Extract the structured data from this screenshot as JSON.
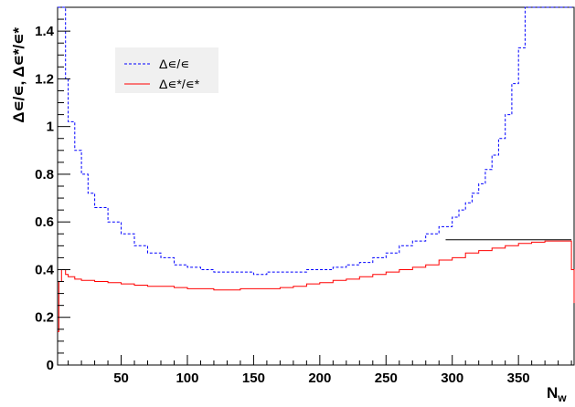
{
  "chart_data": {
    "type": "line",
    "title": "",
    "xlabel": "N",
    "xlabel_sub": "w",
    "ylabel": "Δ∊/∊, Δ∊*/∊*",
    "xlim": [
      2,
      392
    ],
    "ylim": [
      0,
      1.5
    ],
    "x_ticks": [
      50,
      100,
      150,
      200,
      250,
      300,
      350
    ],
    "y_ticks": [
      0,
      0.2,
      0.4,
      0.6,
      0.8,
      1,
      1.2,
      1.4
    ],
    "y_tick_labels": [
      "0",
      "0.2",
      "0.4",
      "0.6",
      "0.8",
      "1",
      "1.2",
      "1.4"
    ],
    "grid": false,
    "legend_position": "top-left",
    "series": [
      {
        "name": "Δ∊/∊",
        "color": "#0000ff",
        "style": "dashed",
        "x": [
          2,
          4,
          6,
          8,
          10,
          15,
          20,
          25,
          30,
          40,
          50,
          60,
          70,
          80,
          90,
          100,
          110,
          120,
          130,
          140,
          150,
          160,
          170,
          180,
          190,
          200,
          210,
          220,
          230,
          240,
          250,
          260,
          270,
          280,
          290,
          300,
          305,
          310,
          315,
          320,
          325,
          330,
          335,
          340,
          345,
          350,
          355,
          360,
          365,
          370,
          375,
          380,
          385,
          390,
          392
        ],
        "values": [
          1.5,
          1.5,
          1.5,
          1.2,
          1.02,
          0.9,
          0.8,
          0.72,
          0.66,
          0.6,
          0.55,
          0.5,
          0.47,
          0.45,
          0.42,
          0.41,
          0.4,
          0.39,
          0.39,
          0.39,
          0.38,
          0.39,
          0.39,
          0.39,
          0.4,
          0.4,
          0.41,
          0.42,
          0.43,
          0.45,
          0.47,
          0.5,
          0.52,
          0.55,
          0.58,
          0.62,
          0.65,
          0.68,
          0.72,
          0.76,
          0.82,
          0.88,
          0.95,
          1.05,
          1.18,
          1.33,
          1.5,
          1.5,
          1.5,
          1.5,
          1.5,
          1.5,
          1.5,
          1.5,
          1.5
        ]
      },
      {
        "name": "Δ∊*/∊*",
        "color": "#ff0000",
        "style": "solid",
        "x": [
          2,
          3,
          5,
          8,
          10,
          15,
          20,
          30,
          40,
          50,
          60,
          70,
          80,
          90,
          100,
          110,
          120,
          130,
          140,
          150,
          160,
          170,
          180,
          190,
          200,
          210,
          220,
          230,
          240,
          250,
          260,
          270,
          280,
          290,
          300,
          310,
          320,
          330,
          340,
          350,
          360,
          370,
          380,
          385,
          388,
          390,
          392
        ],
        "values": [
          0.14,
          0.35,
          0.4,
          0.38,
          0.37,
          0.36,
          0.355,
          0.35,
          0.345,
          0.34,
          0.335,
          0.33,
          0.33,
          0.325,
          0.32,
          0.32,
          0.315,
          0.315,
          0.32,
          0.32,
          0.32,
          0.325,
          0.33,
          0.34,
          0.345,
          0.355,
          0.36,
          0.37,
          0.38,
          0.39,
          0.4,
          0.41,
          0.42,
          0.44,
          0.45,
          0.47,
          0.48,
          0.49,
          0.5,
          0.51,
          0.515,
          0.52,
          0.52,
          0.52,
          0.52,
          0.4,
          0.26
        ]
      }
    ],
    "reference_line": {
      "x": [
        295,
        390
      ],
      "y": 0.525,
      "color": "#000000"
    }
  }
}
